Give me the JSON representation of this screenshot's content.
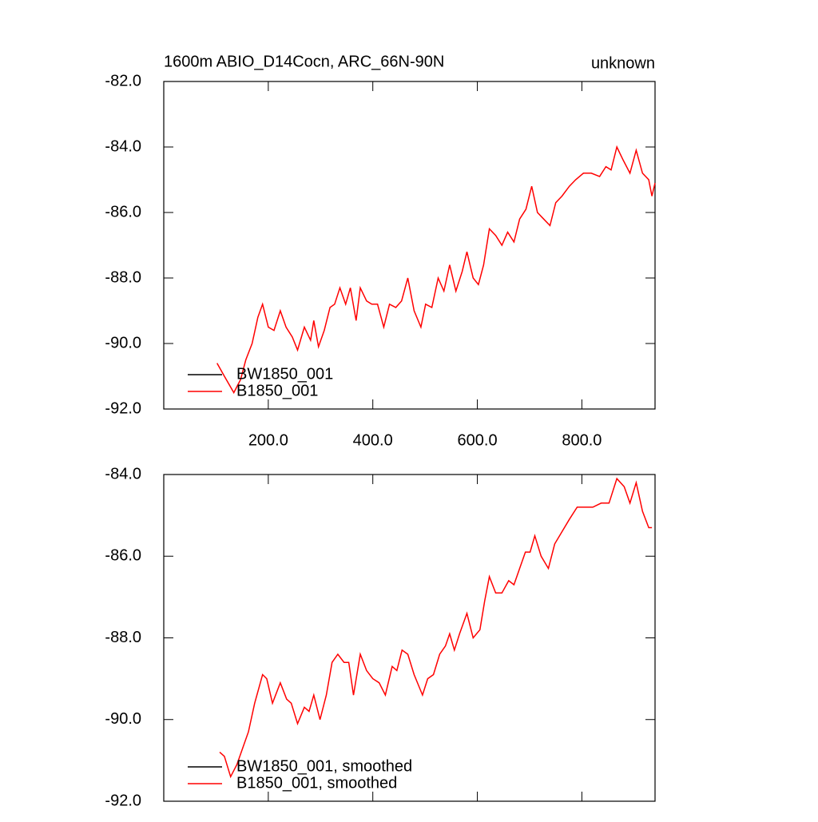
{
  "chart_data": [
    {
      "type": "line",
      "title": "1600m ABIO_D14Cocn, ARC_66N-90N",
      "right_title": "unknown",
      "x": [
        102,
        116,
        134,
        147,
        157,
        169,
        180,
        189,
        200,
        211,
        223,
        234,
        246,
        256,
        269,
        281,
        287,
        296,
        307,
        318,
        327,
        337,
        348,
        357,
        368,
        376,
        388,
        398,
        409,
        421,
        432,
        444,
        455,
        467,
        479,
        492,
        501,
        513,
        525,
        536,
        547,
        559,
        571,
        580,
        592,
        602,
        612,
        623,
        635,
        647,
        658,
        670,
        681,
        693,
        704,
        715,
        727,
        739,
        750,
        762,
        776,
        788,
        803,
        818,
        834,
        846,
        856,
        867,
        879,
        892,
        904,
        916,
        928,
        934,
        940
      ],
      "series": [
        {
          "name": "BW1850_001",
          "color": "#000000",
          "values": [
            null,
            null,
            null,
            null,
            null,
            null,
            null,
            null,
            null,
            null,
            null,
            null,
            null,
            null,
            null,
            null,
            null,
            null,
            null,
            null,
            null,
            null,
            null,
            null,
            null,
            null,
            null,
            null,
            null,
            null,
            null,
            null,
            null,
            null,
            null,
            null,
            null,
            null,
            null,
            null,
            null,
            null,
            null,
            null,
            null,
            null,
            null,
            null,
            null,
            null,
            null,
            null,
            null,
            null,
            null,
            null,
            null,
            null,
            null,
            null,
            null,
            null,
            null,
            null,
            null,
            null,
            null,
            null,
            null,
            null,
            null,
            null,
            null,
            null,
            null
          ]
        },
        {
          "name": "B1850_001",
          "color": "#ff0000",
          "values": [
            -90.6,
            -91.0,
            -91.5,
            -91.1,
            -90.5,
            -90.0,
            -89.2,
            -88.8,
            -89.5,
            -89.6,
            -89.0,
            -89.5,
            -89.8,
            -90.2,
            -89.5,
            -89.9,
            -89.3,
            -90.1,
            -89.6,
            -88.9,
            -88.8,
            -88.3,
            -88.8,
            -88.3,
            -89.3,
            -88.3,
            -88.7,
            -88.8,
            -88.8,
            -89.5,
            -88.8,
            -88.9,
            -88.7,
            -88.0,
            -89.0,
            -89.5,
            -88.8,
            -88.9,
            -88.0,
            -88.4,
            -87.6,
            -88.4,
            -87.8,
            -87.2,
            -88.0,
            -88.2,
            -87.6,
            -86.5,
            -86.7,
            -87.0,
            -86.6,
            -86.9,
            -86.2,
            -85.9,
            -85.2,
            -86.0,
            -86.2,
            -86.4,
            -85.7,
            -85.5,
            -85.2,
            -85.0,
            -84.8,
            -84.8,
            -84.9,
            -84.6,
            -84.7,
            -84.0,
            -84.4,
            -84.8,
            -84.1,
            -84.8,
            -85.0,
            -85.5,
            -85.1
          ]
        }
      ],
      "xlim": [
        0,
        940
      ],
      "xticks": [
        {
          "value": 200,
          "label": "200.0"
        },
        {
          "value": 400,
          "label": "400.0"
        },
        {
          "value": 600,
          "label": "600.0"
        },
        {
          "value": 800,
          "label": "800.0"
        }
      ],
      "ylim": [
        -92,
        -82
      ],
      "yticks": [
        {
          "value": -82,
          "label": "-82.0"
        },
        {
          "value": -84,
          "label": "-84.0"
        },
        {
          "value": -86,
          "label": "-86.0"
        },
        {
          "value": -88,
          "label": "-88.0"
        },
        {
          "value": -90,
          "label": "-90.0"
        },
        {
          "value": -92,
          "label": "-92.0"
        }
      ],
      "legend": "lower left",
      "grid": false
    },
    {
      "type": "line",
      "x": [
        107,
        116,
        128,
        140,
        151,
        162,
        174,
        189,
        197,
        208,
        223,
        235,
        244,
        256,
        269,
        278,
        287,
        299,
        311,
        322,
        333,
        345,
        354,
        363,
        376,
        388,
        400,
        412,
        424,
        437,
        446,
        456,
        467,
        479,
        495,
        505,
        516,
        528,
        539,
        547,
        556,
        566,
        580,
        592,
        605,
        614,
        623,
        635,
        647,
        660,
        670,
        681,
        692,
        701,
        710,
        722,
        736,
        748,
        762,
        776,
        791,
        806,
        821,
        837,
        852,
        867,
        881,
        892,
        904,
        916,
        928,
        934
      ],
      "series": [
        {
          "name": "BW1850_001, smoothed",
          "color": "#000000",
          "values": [
            null,
            null,
            null,
            null,
            null,
            null,
            null,
            null,
            null,
            null,
            null,
            null,
            null,
            null,
            null,
            null,
            null,
            null,
            null,
            null,
            null,
            null,
            null,
            null,
            null,
            null,
            null,
            null,
            null,
            null,
            null,
            null,
            null,
            null,
            null,
            null,
            null,
            null,
            null,
            null,
            null,
            null,
            null,
            null,
            null,
            null,
            null,
            null,
            null,
            null,
            null,
            null,
            null,
            null,
            null,
            null,
            null,
            null,
            null,
            null,
            null,
            null,
            null,
            null,
            null,
            null,
            null,
            null,
            null,
            null,
            null,
            null
          ]
        },
        {
          "name": "B1850_001, smoothed",
          "color": "#ff0000",
          "values": [
            -90.8,
            -90.9,
            -91.4,
            -91.1,
            -90.7,
            -90.3,
            -89.6,
            -88.9,
            -89.0,
            -89.6,
            -89.1,
            -89.5,
            -89.6,
            -90.1,
            -89.7,
            -89.8,
            -89.4,
            -90.0,
            -89.4,
            -88.6,
            -88.4,
            -88.6,
            -88.6,
            -89.4,
            -88.4,
            -88.8,
            -89.0,
            -89.1,
            -89.4,
            -88.7,
            -88.8,
            -88.3,
            -88.4,
            -88.9,
            -89.4,
            -89.0,
            -88.9,
            -88.4,
            -88.2,
            -87.9,
            -88.3,
            -87.9,
            -87.4,
            -88.0,
            -87.8,
            -87.1,
            -86.5,
            -86.9,
            -86.9,
            -86.6,
            -86.7,
            -86.3,
            -85.9,
            -85.9,
            -85.5,
            -86.0,
            -86.3,
            -85.7,
            -85.4,
            -85.1,
            -84.8,
            -84.8,
            -84.8,
            -84.7,
            -84.7,
            -84.1,
            -84.3,
            -84.7,
            -84.2,
            -84.9,
            -85.3,
            -85.3
          ]
        }
      ],
      "xlim": [
        0,
        940
      ],
      "xticks": [
        200,
        400,
        600,
        800
      ],
      "xtick_labels": false,
      "ylim": [
        -92,
        -84
      ],
      "yticks": [
        {
          "value": -84,
          "label": "-84.0"
        },
        {
          "value": -86,
          "label": "-86.0"
        },
        {
          "value": -88,
          "label": "-88.0"
        },
        {
          "value": -90,
          "label": "-90.0"
        },
        {
          "value": -92,
          "label": "-92.0"
        }
      ],
      "legend": "lower left",
      "grid": false
    }
  ]
}
